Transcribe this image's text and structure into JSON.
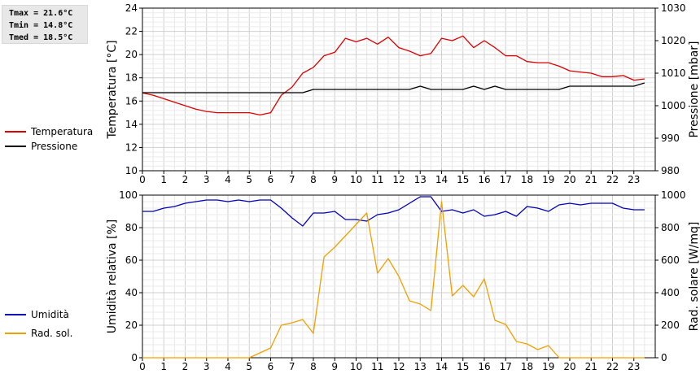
{
  "stats": {
    "tmax": "Tmax = 21.6°C",
    "tmin": "Tmin = 14.8°C",
    "tmed": "Tmed = 18.5°C"
  },
  "chart_data": [
    {
      "type": "line",
      "ylabel": "Temperatura [°C]",
      "y2label": "Pressione [mbar]",
      "xlim": [
        0,
        24
      ],
      "ylim": [
        10,
        24
      ],
      "y2lim": [
        980,
        1030
      ],
      "xticks": [
        "0",
        "1",
        "2",
        "3",
        "4",
        "5",
        "6",
        "7",
        "8",
        "9",
        "10",
        "11",
        "12",
        "13",
        "14",
        "15",
        "16",
        "17",
        "18",
        "19",
        "20",
        "21",
        "22",
        "23"
      ],
      "yticks": [
        "10",
        "12",
        "14",
        "16",
        "18",
        "20",
        "22",
        "24"
      ],
      "y2ticks": [
        "980",
        "990",
        "1000",
        "1010",
        "1020",
        "1030"
      ],
      "grid": true,
      "legend_position": "left",
      "series": [
        {
          "name": "Temperatura",
          "axis": "left",
          "color": "#dd0000",
          "x": [
            0,
            0.5,
            1,
            1.5,
            2,
            2.5,
            3,
            3.5,
            4,
            4.5,
            5,
            5.5,
            6,
            6.5,
            7,
            7.5,
            8,
            8.5,
            9,
            9.5,
            10,
            10.5,
            11,
            11.5,
            12,
            12.5,
            13,
            13.5,
            14,
            14.5,
            15,
            15.5,
            16,
            16.5,
            17,
            17.5,
            18,
            18.5,
            19,
            19.5,
            20,
            20.5,
            21,
            21.5,
            22,
            22.5,
            23,
            23.5
          ],
          "y": [
            16.7,
            16.5,
            16.2,
            15.9,
            15.6,
            15.3,
            15.1,
            15.0,
            15.0,
            15.0,
            15.0,
            14.8,
            15.0,
            16.5,
            17.2,
            18.4,
            18.9,
            19.9,
            20.2,
            21.4,
            21.1,
            21.4,
            20.9,
            21.5,
            20.6,
            20.3,
            19.9,
            20.1,
            21.4,
            21.2,
            21.6,
            20.6,
            21.2,
            20.6,
            19.9,
            19.9,
            19.4,
            19.3,
            19.3,
            19.0,
            18.6,
            18.5,
            18.4,
            18.1,
            18.1,
            18.2,
            17.8,
            17.9
          ]
        },
        {
          "name": "Pressione",
          "axis": "right",
          "color": "#000000",
          "x": [
            0,
            7.5,
            8,
            12.5,
            13,
            13.5,
            15,
            15.5,
            16,
            16.5,
            17,
            19.5,
            20,
            23,
            23.5
          ],
          "y": [
            1004,
            1004,
            1005,
            1005,
            1006,
            1005,
            1005,
            1006,
            1005,
            1006,
            1005,
            1005,
            1006,
            1006,
            1007
          ]
        }
      ]
    },
    {
      "type": "line",
      "ylabel": "Umidità relativa [%]",
      "y2label": "Rad. solare [W/mq]",
      "xlim": [
        0,
        24
      ],
      "ylim": [
        0,
        100
      ],
      "y2lim": [
        0,
        1000
      ],
      "xticks": [
        "0",
        "1",
        "2",
        "3",
        "4",
        "5",
        "6",
        "7",
        "8",
        "9",
        "10",
        "11",
        "12",
        "13",
        "14",
        "15",
        "16",
        "17",
        "18",
        "19",
        "20",
        "21",
        "22",
        "23"
      ],
      "yticks": [
        "0",
        "20",
        "40",
        "60",
        "80",
        "100"
      ],
      "y2ticks": [
        "0",
        "200",
        "400",
        "600",
        "800",
        "1000"
      ],
      "grid": true,
      "legend_position": "left",
      "series": [
        {
          "name": "Umidità",
          "axis": "left",
          "color": "#0000bb",
          "x": [
            0,
            0.5,
            1,
            1.5,
            2,
            2.5,
            3,
            3.5,
            4,
            4.5,
            5,
            5.5,
            6,
            6.5,
            7,
            7.5,
            8,
            8.5,
            9,
            9.5,
            10,
            10.5,
            11,
            11.5,
            12,
            12.5,
            13,
            13.5,
            14,
            14.5,
            15,
            15.5,
            16,
            16.5,
            17,
            17.5,
            18,
            18.5,
            19,
            19.5,
            20,
            20.5,
            21,
            21.5,
            22,
            22.5,
            23,
            23.5
          ],
          "y": [
            90,
            90,
            92,
            93,
            95,
            96,
            97,
            97,
            96,
            97,
            96,
            97,
            97,
            92,
            86,
            81,
            89,
            89,
            90,
            85,
            85,
            84,
            88,
            89,
            91,
            95,
            99,
            99,
            90,
            91,
            89,
            91,
            87,
            88,
            90,
            87,
            93,
            92,
            90,
            94,
            95,
            94,
            95,
            95,
            95,
            92,
            91,
            91
          ]
        },
        {
          "name": "Rad. sol.",
          "axis": "right",
          "color": "#f0a000",
          "x": [
            0,
            0.5,
            1,
            1.5,
            2,
            2.5,
            3,
            3.5,
            4,
            4.5,
            5,
            5.5,
            6,
            6.5,
            7,
            7.5,
            8,
            8.5,
            9,
            9.5,
            10,
            10.5,
            11,
            11.5,
            12,
            12.5,
            13,
            13.5,
            14,
            14.5,
            15,
            15.5,
            16,
            16.5,
            17,
            17.5,
            18,
            18.5,
            19,
            19.5,
            20,
            20.5,
            21,
            21.5,
            22,
            22.5,
            23,
            23.5
          ],
          "y": [
            0,
            0,
            0,
            0,
            0,
            0,
            0,
            0,
            0,
            0,
            0,
            30,
            60,
            200,
            215,
            235,
            150,
            620,
            680,
            750,
            820,
            890,
            520,
            610,
            500,
            350,
            330,
            290,
            960,
            380,
            445,
            375,
            485,
            230,
            205,
            100,
            85,
            50,
            75,
            0,
            0,
            0,
            0,
            0,
            0,
            0,
            0,
            0
          ]
        }
      ]
    }
  ]
}
